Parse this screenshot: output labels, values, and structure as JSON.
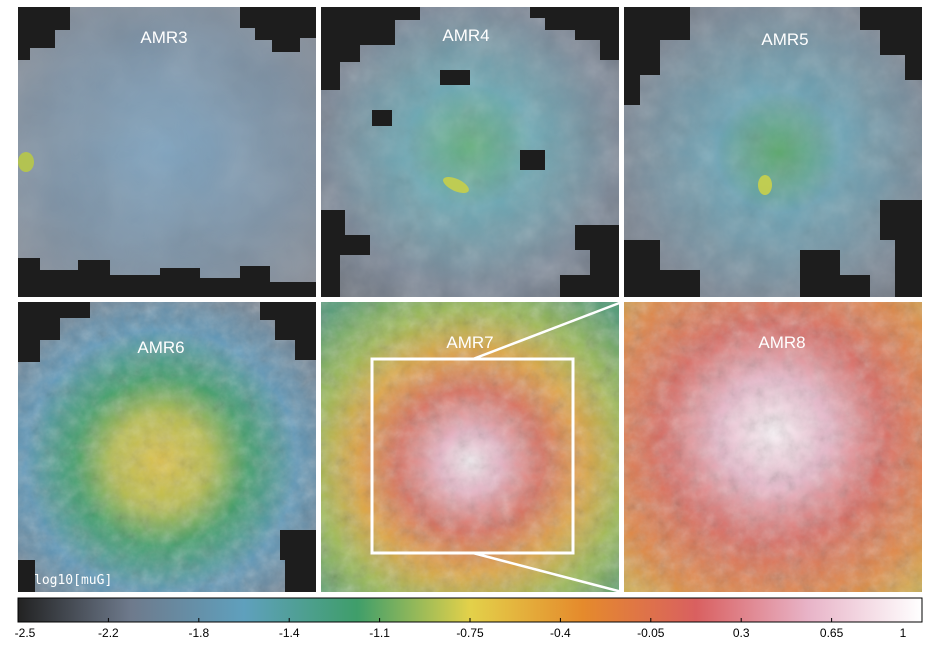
{
  "panels": [
    {
      "label": "AMR3"
    },
    {
      "label": "AMR4"
    },
    {
      "label": "AMR5"
    },
    {
      "label": "AMR6"
    },
    {
      "label": "AMR7"
    },
    {
      "label": "AMR8"
    }
  ],
  "units_label": "log10[muG]",
  "colorbar": {
    "ticks": [
      "-2.5",
      "-2.2",
      "-1.8",
      "-1.4",
      "-1.1",
      "-0.75",
      "-0.4",
      "-0.05",
      "0.3",
      "0.65",
      "1"
    ],
    "colors": [
      "#222222",
      "#6e7a8c",
      "#5fa0bd",
      "#3f9e6a",
      "#e3d14a",
      "#e58a2c",
      "#d96060",
      "#e8b4c8",
      "#ffffff"
    ]
  }
}
